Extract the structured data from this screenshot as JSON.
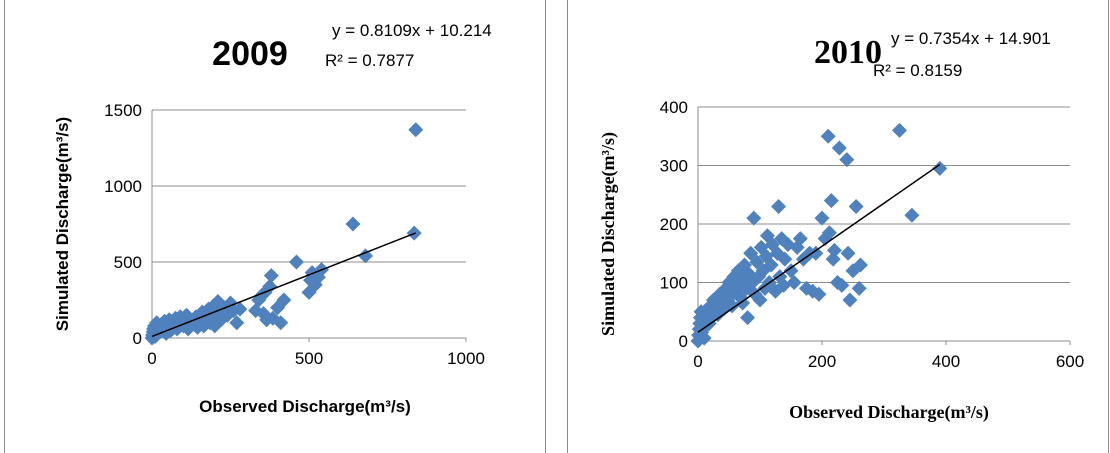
{
  "chart_data": [
    {
      "type": "scatter",
      "title": "2009",
      "xlabel": "Observed Discharge(m³/s)",
      "ylabel": "Simulated Discharge(m³/s)",
      "xlim": [
        0,
        1000
      ],
      "ylim": [
        0,
        1500
      ],
      "xticks": [
        "0",
        "500",
        "1000"
      ],
      "yticks": [
        "0",
        "500",
        "1000",
        "1500"
      ],
      "grid": "horizontal",
      "trendline": {
        "slope": 0.8109,
        "intercept": 10.214,
        "label": "y = 0.8109x + 10.214",
        "r2_label": "R² = 0.7877"
      },
      "points": [
        [
          0,
          0
        ],
        [
          2,
          20
        ],
        [
          4,
          40
        ],
        [
          5,
          60
        ],
        [
          8,
          80
        ],
        [
          10,
          10
        ],
        [
          12,
          50
        ],
        [
          15,
          100
        ],
        [
          18,
          30
        ],
        [
          20,
          70
        ],
        [
          25,
          40
        ],
        [
          30,
          90
        ],
        [
          35,
          60
        ],
        [
          40,
          110
        ],
        [
          45,
          30
        ],
        [
          50,
          80
        ],
        [
          55,
          120
        ],
        [
          60,
          50
        ],
        [
          65,
          100
        ],
        [
          70,
          70
        ],
        [
          75,
          130
        ],
        [
          80,
          60
        ],
        [
          85,
          90
        ],
        [
          90,
          140
        ],
        [
          95,
          110
        ],
        [
          100,
          80
        ],
        [
          110,
          150
        ],
        [
          115,
          60
        ],
        [
          120,
          120
        ],
        [
          125,
          100
        ],
        [
          130,
          90
        ],
        [
          140,
          140
        ],
        [
          145,
          70
        ],
        [
          150,
          110
        ],
        [
          160,
          170
        ],
        [
          165,
          80
        ],
        [
          170,
          130
        ],
        [
          180,
          190
        ],
        [
          185,
          100
        ],
        [
          190,
          150
        ],
        [
          195,
          210
        ],
        [
          200,
          80
        ],
        [
          205,
          170
        ],
        [
          210,
          240
        ],
        [
          220,
          120
        ],
        [
          230,
          200
        ],
        [
          240,
          150
        ],
        [
          250,
          230
        ],
        [
          260,
          180
        ],
        [
          270,
          100
        ],
        [
          280,
          190
        ],
        [
          330,
          180
        ],
        [
          340,
          250
        ],
        [
          350,
          280
        ],
        [
          355,
          160
        ],
        [
          360,
          300
        ],
        [
          365,
          120
        ],
        [
          375,
          340
        ],
        [
          380,
          410
        ],
        [
          385,
          130
        ],
        [
          400,
          200
        ],
        [
          410,
          100
        ],
        [
          420,
          250
        ],
        [
          460,
          500
        ],
        [
          500,
          300
        ],
        [
          505,
          380
        ],
        [
          510,
          430
        ],
        [
          520,
          350
        ],
        [
          530,
          400
        ],
        [
          540,
          450
        ],
        [
          640,
          750
        ],
        [
          680,
          540
        ],
        [
          835,
          690
        ],
        [
          840,
          1370
        ]
      ]
    },
    {
      "type": "scatter",
      "title": "2010",
      "xlabel": "Observed Discharge(m³/s)",
      "ylabel": "Simulated Discharge(m³/s)",
      "xlim": [
        0,
        600
      ],
      "ylim": [
        0,
        400
      ],
      "xticks": [
        "0",
        "200",
        "400",
        "600"
      ],
      "yticks": [
        "0",
        "100",
        "200",
        "300",
        "400"
      ],
      "grid": "horizontal",
      "trendline": {
        "slope": 0.7354,
        "intercept": 14.901,
        "label": "y = 0.7354x + 14.901",
        "r2_label": "R² = 0.8159"
      },
      "points": [
        [
          0,
          0
        ],
        [
          1,
          10
        ],
        [
          2,
          20
        ],
        [
          3,
          30
        ],
        [
          4,
          40
        ],
        [
          5,
          50
        ],
        [
          6,
          15
        ],
        [
          8,
          35
        ],
        [
          10,
          5
        ],
        [
          12,
          25
        ],
        [
          14,
          45
        ],
        [
          16,
          55
        ],
        [
          18,
          30
        ],
        [
          20,
          60
        ],
        [
          22,
          40
        ],
        [
          25,
          70
        ],
        [
          28,
          50
        ],
        [
          30,
          65
        ],
        [
          32,
          45
        ],
        [
          35,
          80
        ],
        [
          38,
          60
        ],
        [
          40,
          75
        ],
        [
          42,
          55
        ],
        [
          45,
          90
        ],
        [
          48,
          70
        ],
        [
          50,
          100
        ],
        [
          52,
          80
        ],
        [
          55,
          60
        ],
        [
          58,
          110
        ],
        [
          60,
          85
        ],
        [
          62,
          95
        ],
        [
          65,
          120
        ],
        [
          68,
          75
        ],
        [
          70,
          105
        ],
        [
          72,
          65
        ],
        [
          75,
          130
        ],
        [
          78,
          90
        ],
        [
          80,
          40
        ],
        [
          82,
          115
        ],
        [
          85,
          150
        ],
        [
          88,
          100
        ],
        [
          90,
          210
        ],
        [
          92,
          80
        ],
        [
          95,
          135
        ],
        [
          98,
          110
        ],
        [
          100,
          70
        ],
        [
          102,
          160
        ],
        [
          105,
          120
        ],
        [
          108,
          90
        ],
        [
          110,
          145
        ],
        [
          112,
          180
        ],
        [
          115,
          100
        ],
        [
          118,
          130
        ],
        [
          120,
          165
        ],
        [
          125,
          85
        ],
        [
          128,
          150
        ],
        [
          130,
          230
        ],
        [
          132,
          110
        ],
        [
          135,
          175
        ],
        [
          138,
          95
        ],
        [
          140,
          140
        ],
        [
          145,
          165
        ],
        [
          150,
          120
        ],
        [
          155,
          100
        ],
        [
          160,
          160
        ],
        [
          165,
          175
        ],
        [
          170,
          140
        ],
        [
          175,
          90
        ],
        [
          180,
          150
        ],
        [
          185,
          85
        ],
        [
          190,
          150
        ],
        [
          195,
          80
        ],
        [
          200,
          210
        ],
        [
          205,
          175
        ],
        [
          210,
          350
        ],
        [
          212,
          185
        ],
        [
          215,
          240
        ],
        [
          218,
          140
        ],
        [
          220,
          155
        ],
        [
          225,
          100
        ],
        [
          228,
          330
        ],
        [
          232,
          95
        ],
        [
          240,
          310
        ],
        [
          242,
          150
        ],
        [
          245,
          70
        ],
        [
          250,
          120
        ],
        [
          255,
          230
        ],
        [
          260,
          90
        ],
        [
          262,
          130
        ],
        [
          325,
          360
        ],
        [
          345,
          215
        ],
        [
          390,
          295
        ]
      ]
    }
  ]
}
